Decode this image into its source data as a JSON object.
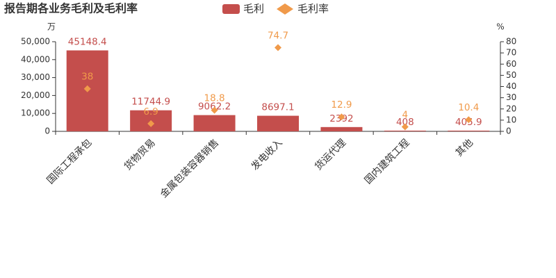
{
  "chart_data": {
    "type": "bar",
    "title": "报告期各业务毛利及毛利率",
    "y_unit": "万",
    "y2_unit": "%",
    "categories": [
      "国际工程承包",
      "货物贸易",
      "金属包装容器销售",
      "发电收入",
      "货运代理",
      "国内建筑工程",
      "其他"
    ],
    "series": [
      {
        "name": "毛利",
        "type": "bar",
        "color": "#c44e4c",
        "values": [
          45148.4,
          11744.9,
          9062.2,
          8697.1,
          2392,
          408,
          405.9
        ]
      },
      {
        "name": "毛利率",
        "type": "scatter",
        "axis": "y2",
        "color": "#f09a4a",
        "values": [
          38,
          6.9,
          18.8,
          74.7,
          12.9,
          4,
          10.4
        ]
      }
    ],
    "ylim": [
      0,
      50000
    ],
    "yticks": [
      0,
      {
        "value": 10000,
        "label": "10,000"
      },
      {
        "value": 20000,
        "label": "20,000"
      },
      {
        "value": 30000,
        "label": "30,000"
      },
      {
        "value": 40000,
        "label": "40,000"
      },
      {
        "value": 50000,
        "label": "50,000"
      }
    ],
    "y2lim": [
      0,
      80
    ],
    "y2ticks": [
      0,
      10,
      20,
      30,
      40,
      50,
      60,
      70,
      80
    ]
  }
}
